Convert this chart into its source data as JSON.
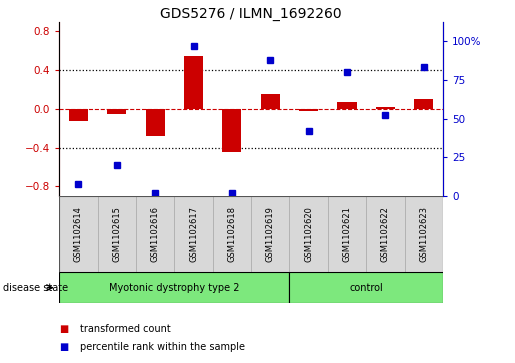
{
  "title": "GDS5276 / ILMN_1692260",
  "samples": [
    "GSM1102614",
    "GSM1102615",
    "GSM1102616",
    "GSM1102617",
    "GSM1102618",
    "GSM1102619",
    "GSM1102620",
    "GSM1102621",
    "GSM1102622",
    "GSM1102623"
  ],
  "red_values": [
    -0.12,
    -0.05,
    -0.28,
    0.55,
    -0.45,
    0.15,
    -0.02,
    0.07,
    0.02,
    0.1
  ],
  "blue_values": [
    8,
    20,
    2,
    97,
    2,
    88,
    42,
    80,
    52,
    83
  ],
  "ylim_left": [
    -0.9,
    0.9
  ],
  "ylim_right": [
    0,
    112.5
  ],
  "yticks_left": [
    -0.8,
    -0.4,
    0.0,
    0.4,
    0.8
  ],
  "yticks_right": [
    0,
    25,
    50,
    75,
    100
  ],
  "ytick_labels_right": [
    "0",
    "25",
    "50",
    "75",
    "100%"
  ],
  "red_color": "#cc0000",
  "blue_color": "#0000cc",
  "zero_line_color": "#cc0000",
  "dotted_line_color": "#000000",
  "bar_width": 0.5,
  "n_disease": 6,
  "n_control": 4,
  "disease_label": "Myotonic dystrophy type 2",
  "control_label": "control",
  "disease_state_label": "disease state",
  "legend_red": "transformed count",
  "legend_blue": "percentile rank within the sample",
  "sample_box_color": "#d8d8d8",
  "group_color": "#7de87d",
  "group_border_color": "#000000"
}
